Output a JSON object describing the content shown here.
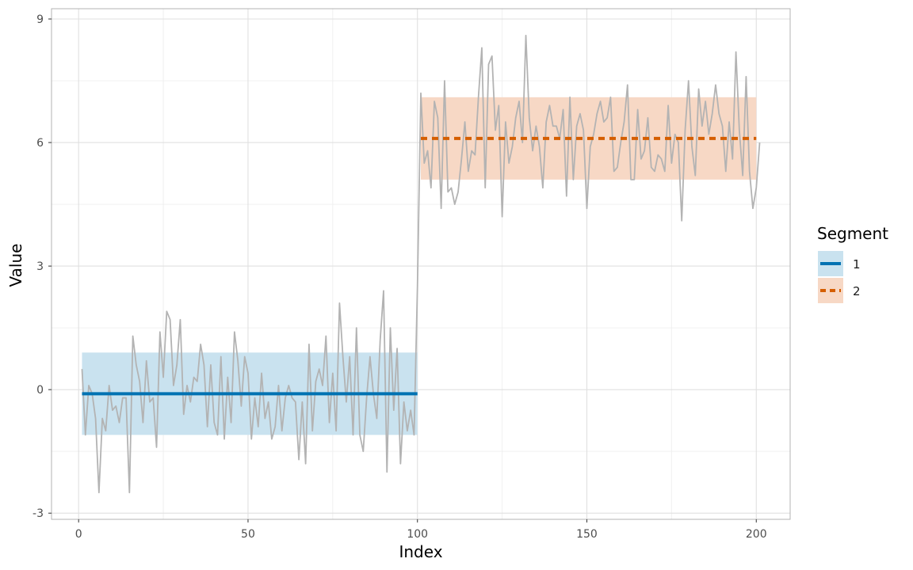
{
  "chart_data": {
    "type": "line",
    "xlabel": "Index",
    "ylabel": "Value",
    "xlim": [
      -8,
      210
    ],
    "ylim": [
      -3.15,
      9.25
    ],
    "x_ticks": [
      0,
      50,
      100,
      150,
      200
    ],
    "x_tick_labels": [
      "0",
      "50",
      "100",
      "150",
      "200"
    ],
    "y_ticks": [
      -3,
      0,
      3,
      6,
      9
    ],
    "y_tick_labels": [
      "-3",
      "0",
      "3",
      "6",
      "9"
    ],
    "grid": true,
    "legend_position": "right",
    "colors": {
      "raw_series": "#b3b3b3",
      "segment_1": "#0072b2",
      "segment_1_band": "#c9e2ef",
      "segment_2": "#d55e00",
      "segment_2_band": "#f7d8c5",
      "grid_major": "#e0e0e0",
      "grid_minor": "#f0f0f0",
      "panel_border": "#b3b3b3"
    },
    "series": [
      {
        "x_start": 1,
        "values": [
          0.5,
          -1.1,
          0.1,
          -0.1,
          -0.7,
          -2.5,
          -0.7,
          -1.0,
          0.1,
          -0.5,
          -0.4,
          -0.8,
          -0.2,
          -0.2,
          -2.5,
          1.3,
          0.6,
          0.2,
          -0.8,
          0.7,
          -0.3,
          -0.2,
          -1.4,
          1.4,
          0.3,
          1.9,
          1.7,
          0.1,
          0.6,
          1.7,
          -0.6,
          0.1,
          -0.3,
          0.3,
          0.2,
          1.1,
          0.6,
          -0.9,
          0.6,
          -0.8,
          -1.1,
          0.8,
          -1.2,
          0.3,
          -0.8,
          1.4,
          0.7,
          -0.4,
          0.8,
          0.4,
          -1.2,
          -0.2,
          -0.9,
          0.4,
          -0.7,
          -0.3,
          -1.2,
          -0.9,
          0.1,
          -1.0,
          -0.2,
          0.1,
          -0.2,
          -0.3,
          -1.7,
          -0.3,
          -1.8,
          1.1,
          -1.0,
          0.2,
          0.5,
          0.1,
          1.3,
          -0.8,
          0.4,
          -1.0,
          2.1,
          0.8,
          -0.3,
          0.8,
          -1.1,
          1.5,
          -1.1,
          -1.5,
          -0.2,
          0.8,
          -0.1,
          -0.7,
          1.2,
          2.4,
          -2.0,
          1.5,
          -0.5,
          1.0,
          -1.8,
          -0.3,
          -1.0,
          -0.5,
          -1.1,
          2.5,
          7.2,
          5.5,
          5.8,
          4.9,
          7.0,
          6.6,
          4.4,
          7.5,
          4.8,
          4.9,
          4.5,
          4.8,
          5.6,
          6.5,
          5.3,
          5.8,
          5.7,
          7.1,
          8.3,
          4.9,
          7.9,
          8.1,
          6.3,
          6.9,
          4.2,
          6.5,
          5.5,
          5.9,
          6.6,
          7.0,
          6.0,
          8.6,
          6.6,
          5.8,
          6.4,
          5.9,
          4.9,
          6.5,
          6.9,
          6.4,
          6.4,
          6.1,
          6.8,
          4.7,
          7.1,
          5.1,
          6.4,
          6.7,
          6.3,
          4.4,
          5.9,
          6.2,
          6.7,
          7.0,
          6.5,
          6.6,
          7.1,
          5.3,
          5.4,
          6.0,
          6.5,
          7.4,
          5.1,
          5.1,
          6.8,
          5.6,
          5.8,
          6.6,
          5.4,
          5.3,
          5.7,
          5.6,
          5.3,
          6.9,
          5.5,
          6.2,
          6.0,
          4.1,
          6.3,
          7.5,
          5.9,
          5.2,
          7.3,
          6.4,
          7.0,
          6.2,
          6.7,
          7.4,
          6.7,
          6.4,
          5.3,
          6.5,
          5.6,
          8.2,
          6.3,
          5.2,
          7.6,
          5.3,
          4.4,
          4.9,
          6.0
        ]
      }
    ],
    "segments": [
      {
        "name": "1",
        "x_start": 1,
        "x_end": 100,
        "mean": -0.1,
        "lower": -1.1,
        "upper": 0.9,
        "line_style": "solid"
      },
      {
        "name": "2",
        "x_start": 101,
        "x_end": 200,
        "mean": 6.1,
        "lower": 5.1,
        "upper": 7.1,
        "line_style": "dashed"
      }
    ],
    "legend": {
      "title": "Segment",
      "entries": [
        "1",
        "2"
      ]
    }
  }
}
